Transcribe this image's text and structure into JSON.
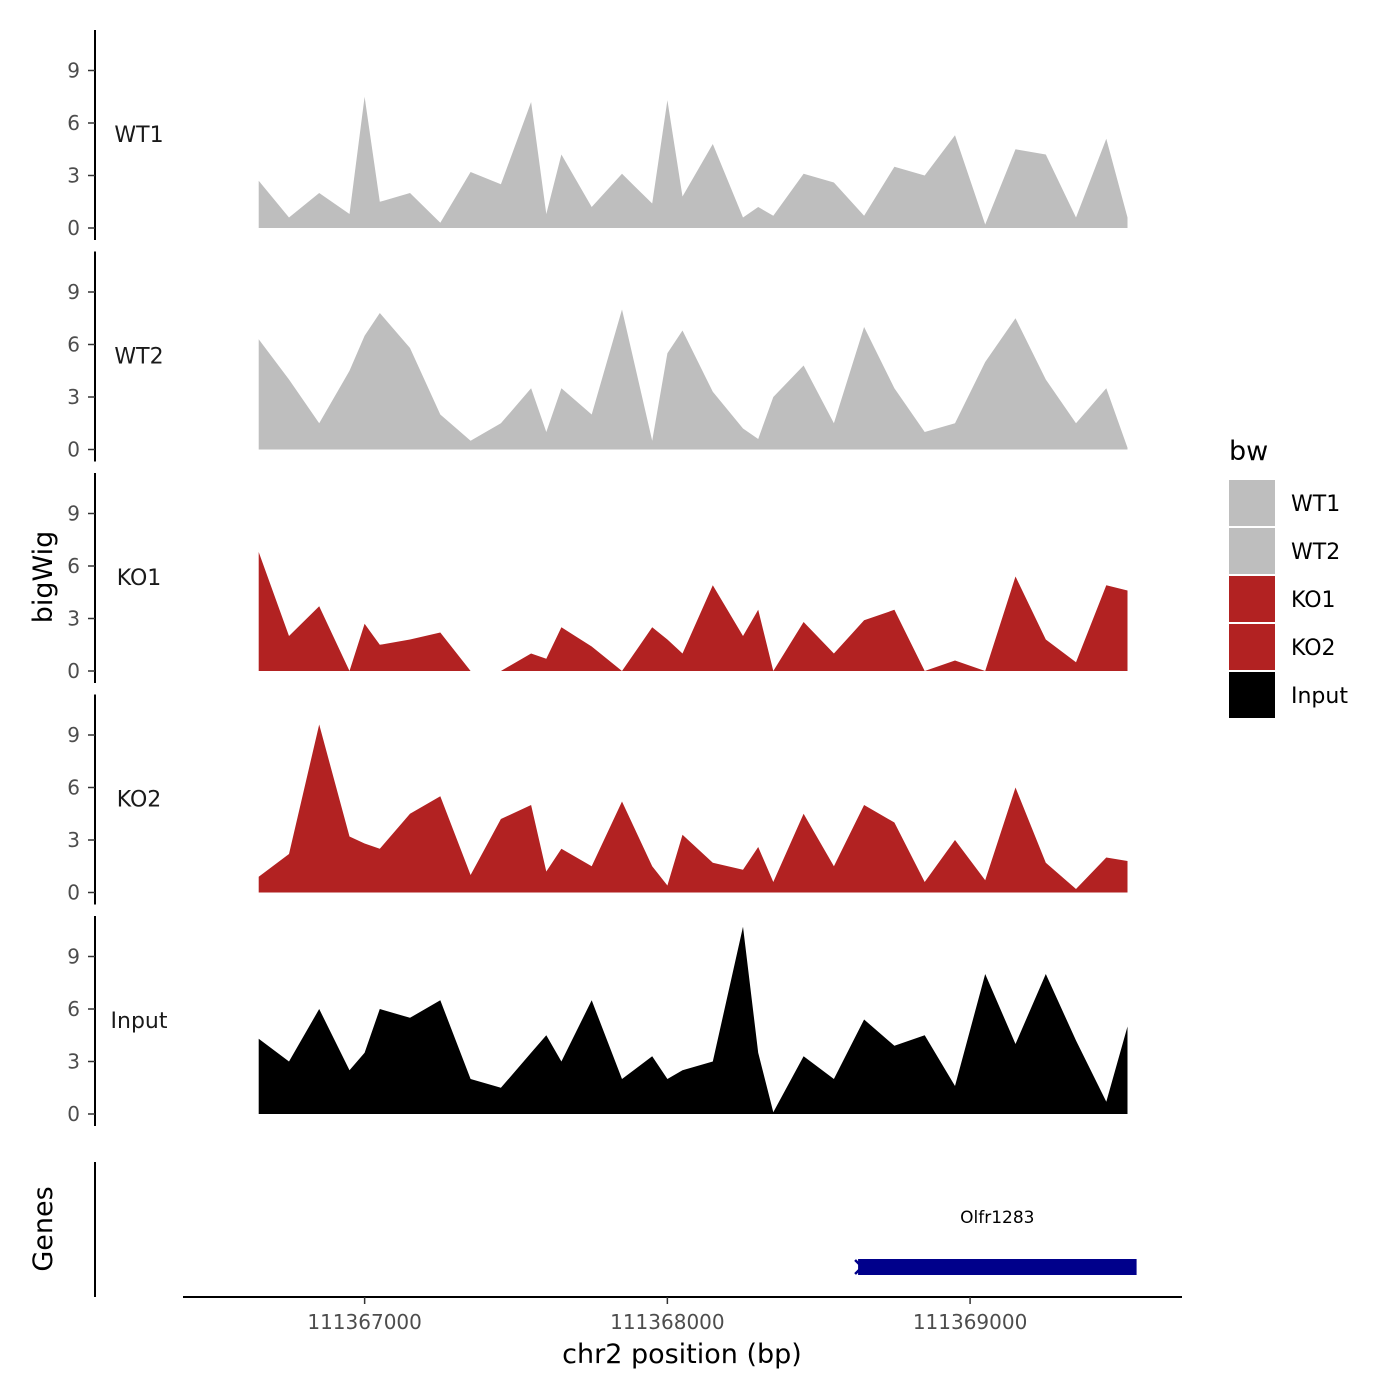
{
  "chart_data": {
    "type": "area",
    "title": "",
    "ylabel": "bigWig",
    "xlabel": "chr2 position (bp)",
    "genes_label": "Genes",
    "xlim": [
      111366400,
      111369700
    ],
    "ylim": [
      0,
      11
    ],
    "yticks": [
      0,
      3,
      6,
      9
    ],
    "xticks": [
      111367000,
      111368000,
      111369000
    ],
    "xtick_labels": [
      "111367000",
      "111368000",
      "111369000"
    ],
    "legend": {
      "title": "bw",
      "position": "right",
      "entries": [
        {
          "label": "WT1",
          "color": "#bebebe"
        },
        {
          "label": "WT2",
          "color": "#bebebe"
        },
        {
          "label": "KO1",
          "color": "#b22222"
        },
        {
          "label": "KO2",
          "color": "#b22222"
        },
        {
          "label": "Input",
          "color": "#000000"
        }
      ]
    },
    "x": [
      111366650,
      111366750,
      111366850,
      111366950,
      111367000,
      111367050,
      111367150,
      111367250,
      111367350,
      111367450,
      111367550,
      111367600,
      111367650,
      111367750,
      111367850,
      111367950,
      111368000,
      111368050,
      111368150,
      111368250,
      111368300,
      111368350,
      111368450,
      111368550,
      111368650,
      111368750,
      111368850,
      111368950,
      111369050,
      111369150,
      111369250,
      111369350,
      111369450,
      111369520
    ],
    "series": [
      {
        "name": "WT1",
        "color": "#bebebe",
        "values": [
          2.7,
          0.6,
          2.0,
          0.8,
          7.5,
          1.5,
          2.0,
          0.3,
          3.2,
          2.5,
          7.2,
          0.8,
          4.2,
          1.2,
          3.1,
          1.4,
          7.3,
          1.8,
          4.8,
          0.6,
          1.2,
          0.7,
          3.1,
          2.6,
          0.7,
          3.5,
          3.0,
          5.3,
          0.2,
          4.5,
          4.2,
          0.6,
          5.1,
          0.6
        ]
      },
      {
        "name": "WT2",
        "color": "#bebebe",
        "values": [
          6.3,
          4.0,
          1.5,
          4.5,
          6.5,
          7.8,
          5.8,
          2.0,
          0.5,
          1.5,
          3.5,
          1.0,
          3.5,
          2.0,
          8.0,
          0.5,
          5.5,
          6.8,
          3.3,
          1.2,
          0.6,
          3.0,
          4.8,
          1.5,
          7.0,
          3.5,
          1.0,
          1.5,
          5.0,
          7.5,
          4.0,
          1.5,
          3.5,
          0.1
        ]
      },
      {
        "name": "KO1",
        "color": "#b22222",
        "values": [
          6.8,
          2.0,
          3.7,
          0.0,
          2.7,
          1.5,
          1.8,
          2.2,
          0.0,
          0.0,
          1.0,
          0.7,
          2.5,
          1.4,
          0.0,
          2.5,
          1.8,
          1.0,
          4.9,
          2.0,
          3.5,
          0.0,
          2.8,
          1.0,
          2.9,
          3.5,
          0.0,
          0.6,
          0.0,
          5.4,
          1.8,
          0.5,
          4.9,
          4.6
        ]
      },
      {
        "name": "KO2",
        "color": "#b22222",
        "values": [
          0.9,
          2.2,
          9.6,
          3.2,
          2.8,
          2.5,
          4.5,
          5.5,
          1.0,
          4.2,
          5.0,
          1.2,
          2.5,
          1.5,
          5.2,
          1.5,
          0.4,
          3.3,
          1.7,
          1.3,
          2.6,
          0.6,
          4.5,
          1.5,
          5.0,
          4.0,
          0.6,
          3.0,
          0.7,
          6.0,
          1.7,
          0.2,
          2.0,
          1.8
        ]
      },
      {
        "name": "Input",
        "color": "#000000",
        "values": [
          4.3,
          3.0,
          6.0,
          2.5,
          3.5,
          6.0,
          5.5,
          6.5,
          2.0,
          1.5,
          3.5,
          4.5,
          3.0,
          6.5,
          2.0,
          3.3,
          2.0,
          2.5,
          3.0,
          10.7,
          3.5,
          0.1,
          3.3,
          2.0,
          5.4,
          3.9,
          4.5,
          1.6,
          8.0,
          4.0,
          8.0,
          4.2,
          0.7,
          5.0
        ]
      }
    ],
    "genes": [
      {
        "name": "Olfr1283",
        "start": 111368630,
        "end": 111369550,
        "strand": "-",
        "color": "#00008b"
      }
    ]
  }
}
